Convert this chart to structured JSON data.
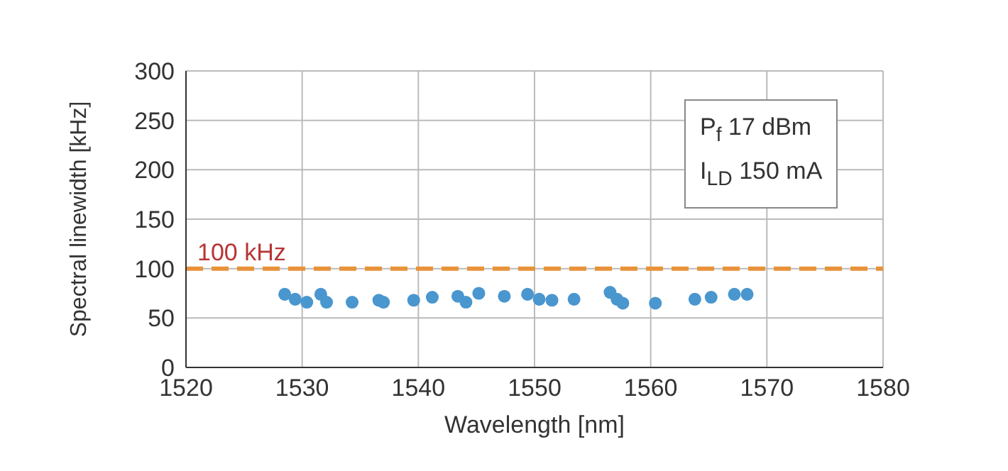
{
  "chart_data": {
    "type": "scatter",
    "xlabel": "Wavelength [nm]",
    "ylabel": "Spectral linewidth [kHz]",
    "series": [
      {
        "color": "#4a96cf",
        "x": [
          1528.5,
          1529.4,
          1530.4,
          1531.6,
          1532.1,
          1534.3,
          1536.6,
          1537.0,
          1539.6,
          1541.2,
          1543.4,
          1544.1,
          1545.2,
          1547.4,
          1549.4,
          1550.4,
          1551.5,
          1553.4,
          1556.5,
          1557.1,
          1557.6,
          1560.4,
          1563.8,
          1565.2,
          1567.2,
          1568.3
        ],
        "values": [
          74,
          69,
          66,
          74,
          66,
          66,
          68,
          66,
          68,
          71,
          72,
          66,
          75,
          72,
          74,
          69,
          68,
          69,
          76,
          69,
          65,
          65,
          69,
          71,
          74,
          74
        ]
      }
    ],
    "xlim": [
      1520,
      1580
    ],
    "xticks": [
      1520,
      1530,
      1540,
      1550,
      1560,
      1570,
      1580
    ],
    "ylim": [
      0,
      300
    ],
    "yticks": [
      0,
      50,
      100,
      150,
      200,
      250,
      300
    ],
    "grid": true,
    "marker": "circle",
    "ref_lines": [
      {
        "axis": "y",
        "value": 100,
        "label": "100 kHz",
        "color": "#e8923a",
        "line_style": "dashed"
      }
    ],
    "annotations": [
      "P$_{f}$ 17 dBm",
      "I$_{LD}$ 150 mA"
    ]
  }
}
